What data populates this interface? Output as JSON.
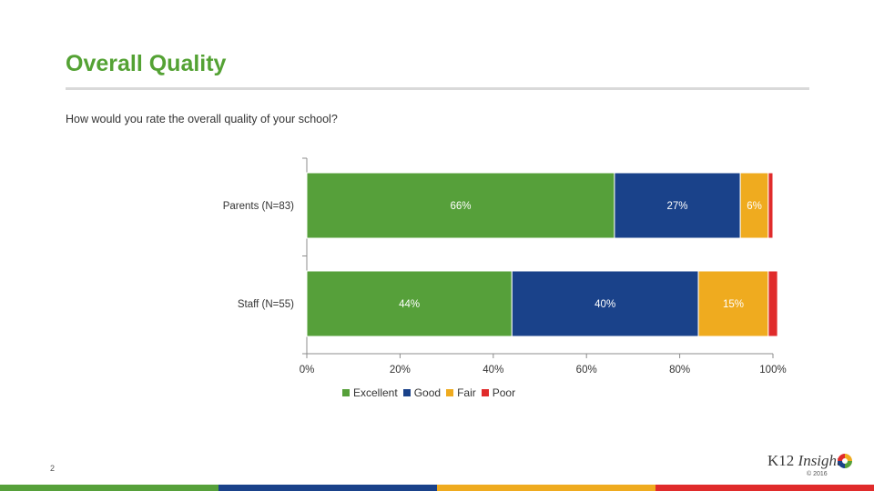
{
  "slide": {
    "title": "Overall Quality",
    "question": "How would you rate the overall quality of your school?",
    "page_number": "2",
    "logo_k12": "K12",
    "logo_insight": "Insight",
    "copyright": "© 2016"
  },
  "colors": {
    "excellent": "#56a03a",
    "good": "#1a428a",
    "fair": "#efab1f",
    "poor": "#e02b2b",
    "footer": [
      "#56a03a",
      "#1a428a",
      "#efab1f",
      "#e02b2b"
    ]
  },
  "chart_data": {
    "type": "bar",
    "orientation": "horizontal",
    "stacked": true,
    "categories": [
      "Parents (N=83)",
      "Staff (N=55)"
    ],
    "series": [
      {
        "name": "Excellent",
        "values": [
          66,
          44
        ],
        "labels": [
          "66%",
          "44%"
        ]
      },
      {
        "name": "Good",
        "values": [
          27,
          40
        ],
        "labels": [
          "27%",
          "40%"
        ]
      },
      {
        "name": "Fair",
        "values": [
          6,
          15
        ],
        "labels": [
          "6%",
          "15%"
        ]
      },
      {
        "name": "Poor",
        "values": [
          1,
          2
        ],
        "labels": [
          "",
          ""
        ]
      }
    ],
    "x_ticks": [
      "0%",
      "20%",
      "40%",
      "60%",
      "80%",
      "100%"
    ],
    "xlim": [
      0,
      100
    ],
    "legend": [
      "Excellent",
      "Good",
      "Fair",
      "Poor"
    ],
    "legend_position": "bottom"
  }
}
